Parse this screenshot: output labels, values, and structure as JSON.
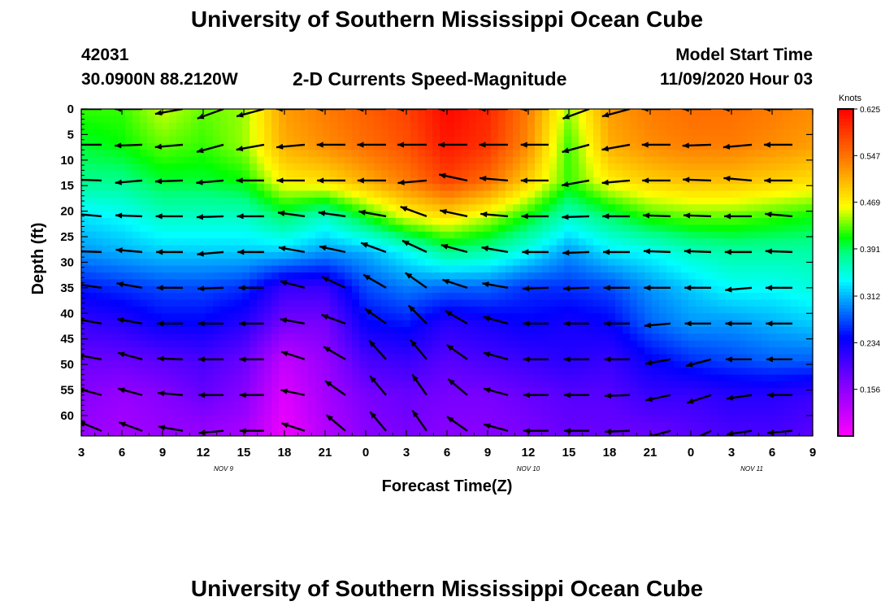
{
  "header": {
    "title": "University of Southern Mississippi Ocean Cube",
    "station_id": "42031",
    "location": "30.0900N 88.2120W",
    "plot_title": "2-D Currents Speed-Magnitude",
    "model_start_label": "Model Start Time",
    "model_start_value": "11/09/2020 Hour 03"
  },
  "footer": {
    "title": "University of Southern Mississippi Ocean Cube"
  },
  "chart_data": {
    "type": "heatmap",
    "title": "2-D Currents Speed-Magnitude",
    "xlabel": "Forecast Time(Z)",
    "ylabel": "Depth (ft)",
    "x_tick_labels": [
      "3",
      "6",
      "9",
      "12",
      "15",
      "18",
      "21",
      "0",
      "3",
      "6",
      "9",
      "12",
      "15",
      "18",
      "21",
      "0",
      "3",
      "6",
      "9"
    ],
    "day_labels": [
      {
        "label": "NOV  9",
        "tick_index": 3.5
      },
      {
        "label": "NOV  10",
        "tick_index": 11
      },
      {
        "label": "NOV  11",
        "tick_index": 16.5
      }
    ],
    "y_ticks": [
      0,
      5,
      10,
      15,
      20,
      25,
      30,
      35,
      40,
      45,
      50,
      55,
      60
    ],
    "ylim": [
      0,
      64
    ],
    "colorbar": {
      "unit": "Knots",
      "range": [
        0.078,
        0.625
      ],
      "tick_values": [
        0.625,
        0.547,
        0.469,
        0.391,
        0.312,
        0.234,
        0.156
      ],
      "tick_labels": [
        "0.625",
        "0.547",
        "0.469",
        "0.391",
        "0.312",
        "0.234",
        "0.156"
      ]
    },
    "hours": [
      3,
      6,
      9,
      12,
      15,
      18,
      21,
      24,
      27,
      30,
      33,
      36,
      39,
      42,
      45,
      48,
      51,
      54,
      57
    ],
    "depths_ft": [
      0,
      7,
      14,
      21,
      28,
      35,
      42,
      49,
      56,
      63
    ],
    "speed_knots": [
      [
        0.42,
        0.42,
        0.45,
        0.43,
        0.44,
        0.52,
        0.54,
        0.56,
        0.58,
        0.62,
        0.6,
        0.54,
        0.44,
        0.52,
        0.54,
        0.55,
        0.55,
        0.54,
        0.53
      ],
      [
        0.4,
        0.41,
        0.43,
        0.42,
        0.44,
        0.51,
        0.53,
        0.55,
        0.57,
        0.61,
        0.59,
        0.53,
        0.42,
        0.51,
        0.53,
        0.54,
        0.54,
        0.53,
        0.52
      ],
      [
        0.38,
        0.38,
        0.4,
        0.4,
        0.41,
        0.47,
        0.48,
        0.51,
        0.54,
        0.58,
        0.55,
        0.49,
        0.42,
        0.47,
        0.49,
        0.5,
        0.5,
        0.49,
        0.48
      ],
      [
        0.33,
        0.34,
        0.36,
        0.36,
        0.36,
        0.39,
        0.36,
        0.41,
        0.46,
        0.48,
        0.45,
        0.41,
        0.36,
        0.39,
        0.42,
        0.43,
        0.43,
        0.42,
        0.41
      ],
      [
        0.3,
        0.31,
        0.32,
        0.32,
        0.32,
        0.32,
        0.3,
        0.31,
        0.34,
        0.38,
        0.37,
        0.34,
        0.3,
        0.33,
        0.34,
        0.36,
        0.37,
        0.37,
        0.37
      ],
      [
        0.25,
        0.26,
        0.27,
        0.27,
        0.26,
        0.21,
        0.21,
        0.27,
        0.29,
        0.28,
        0.28,
        0.26,
        0.26,
        0.27,
        0.3,
        0.32,
        0.34,
        0.34,
        0.35
      ],
      [
        0.21,
        0.22,
        0.24,
        0.24,
        0.22,
        0.17,
        0.17,
        0.24,
        0.25,
        0.22,
        0.23,
        0.24,
        0.23,
        0.24,
        0.28,
        0.3,
        0.3,
        0.31,
        0.32
      ],
      [
        0.18,
        0.18,
        0.19,
        0.2,
        0.18,
        0.12,
        0.15,
        0.2,
        0.21,
        0.19,
        0.2,
        0.21,
        0.22,
        0.21,
        0.24,
        0.26,
        0.27,
        0.28,
        0.28
      ],
      [
        0.16,
        0.15,
        0.16,
        0.18,
        0.16,
        0.1,
        0.14,
        0.17,
        0.18,
        0.17,
        0.17,
        0.18,
        0.19,
        0.19,
        0.21,
        0.21,
        0.22,
        0.22,
        0.21
      ],
      [
        0.15,
        0.14,
        0.15,
        0.15,
        0.14,
        0.09,
        0.13,
        0.16,
        0.17,
        0.16,
        0.16,
        0.17,
        0.18,
        0.18,
        0.18,
        0.19,
        0.2,
        0.2,
        0.19
      ]
    ],
    "vector_hours": [
      4.5,
      7.5,
      10.5,
      13.5,
      16.5,
      19.5,
      22.5,
      25.5,
      28.5,
      31.5,
      34.5,
      37.5,
      40.5,
      43.5,
      46.5,
      49.5,
      52.5,
      55.5
    ],
    "vector_depths_ft": [
      0,
      7,
      14,
      21,
      28,
      35,
      42,
      49,
      56,
      63
    ],
    "vector_direction_deg": [
      [
        180,
        180,
        190,
        200,
        195,
        180,
        180,
        180,
        180,
        180,
        180,
        180,
        200,
        195,
        180,
        180,
        180,
        180
      ],
      [
        180,
        182,
        185,
        195,
        190,
        185,
        180,
        180,
        180,
        180,
        180,
        180,
        195,
        190,
        180,
        182,
        185,
        180
      ],
      [
        178,
        185,
        182,
        185,
        180,
        180,
        180,
        180,
        185,
        168,
        175,
        180,
        190,
        185,
        180,
        178,
        175,
        180
      ],
      [
        175,
        178,
        180,
        182,
        180,
        172,
        172,
        170,
        160,
        168,
        175,
        180,
        182,
        180,
        178,
        178,
        180,
        175
      ],
      [
        178,
        175,
        180,
        185,
        180,
        170,
        168,
        160,
        155,
        165,
        170,
        180,
        182,
        180,
        178,
        178,
        180,
        178
      ],
      [
        172,
        170,
        180,
        182,
        180,
        165,
        155,
        150,
        145,
        162,
        170,
        182,
        182,
        180,
        180,
        180,
        185,
        180
      ],
      [
        170,
        170,
        180,
        180,
        180,
        170,
        160,
        145,
        135,
        150,
        165,
        180,
        180,
        180,
        185,
        180,
        180,
        180
      ],
      [
        170,
        165,
        178,
        180,
        180,
        162,
        150,
        132,
        130,
        145,
        165,
        180,
        180,
        180,
        190,
        195,
        180,
        180
      ],
      [
        165,
        165,
        175,
        180,
        180,
        168,
        145,
        130,
        125,
        140,
        165,
        180,
        180,
        182,
        192,
        198,
        188,
        180
      ],
      [
        158,
        160,
        170,
        185,
        180,
        162,
        140,
        130,
        125,
        145,
        165,
        180,
        180,
        182,
        195,
        205,
        188,
        185
      ]
    ],
    "vector_speed_knots": [
      [
        0.42,
        0.44,
        0.49,
        0.46,
        0.52,
        0.54,
        0.55,
        0.58,
        0.61,
        0.6,
        0.57,
        0.48,
        0.49,
        0.54,
        0.55,
        0.55,
        0.55,
        0.53
      ],
      [
        0.4,
        0.42,
        0.47,
        0.44,
        0.5,
        0.52,
        0.54,
        0.56,
        0.6,
        0.59,
        0.56,
        0.46,
        0.48,
        0.52,
        0.54,
        0.54,
        0.54,
        0.52
      ],
      [
        0.38,
        0.39,
        0.44,
        0.41,
        0.46,
        0.48,
        0.5,
        0.53,
        0.57,
        0.56,
        0.52,
        0.45,
        0.46,
        0.48,
        0.5,
        0.5,
        0.5,
        0.49
      ],
      [
        0.34,
        0.35,
        0.38,
        0.36,
        0.39,
        0.38,
        0.4,
        0.44,
        0.47,
        0.47,
        0.43,
        0.38,
        0.4,
        0.41,
        0.43,
        0.43,
        0.43,
        0.42
      ],
      [
        0.31,
        0.32,
        0.34,
        0.32,
        0.33,
        0.31,
        0.32,
        0.34,
        0.36,
        0.38,
        0.35,
        0.32,
        0.33,
        0.35,
        0.36,
        0.37,
        0.37,
        0.37
      ],
      [
        0.26,
        0.27,
        0.29,
        0.26,
        0.23,
        0.21,
        0.25,
        0.28,
        0.28,
        0.28,
        0.27,
        0.26,
        0.27,
        0.29,
        0.32,
        0.33,
        0.34,
        0.35
      ],
      [
        0.22,
        0.23,
        0.26,
        0.23,
        0.19,
        0.17,
        0.22,
        0.24,
        0.23,
        0.23,
        0.24,
        0.24,
        0.24,
        0.27,
        0.29,
        0.3,
        0.31,
        0.32
      ],
      [
        0.18,
        0.19,
        0.22,
        0.19,
        0.15,
        0.14,
        0.18,
        0.2,
        0.2,
        0.2,
        0.21,
        0.22,
        0.22,
        0.23,
        0.25,
        0.27,
        0.28,
        0.28
      ],
      [
        0.15,
        0.16,
        0.18,
        0.17,
        0.13,
        0.12,
        0.16,
        0.17,
        0.17,
        0.17,
        0.18,
        0.19,
        0.19,
        0.2,
        0.21,
        0.22,
        0.22,
        0.21
      ],
      [
        0.14,
        0.15,
        0.16,
        0.15,
        0.12,
        0.11,
        0.15,
        0.16,
        0.16,
        0.16,
        0.17,
        0.18,
        0.18,
        0.18,
        0.19,
        0.2,
        0.2,
        0.19
      ]
    ]
  }
}
